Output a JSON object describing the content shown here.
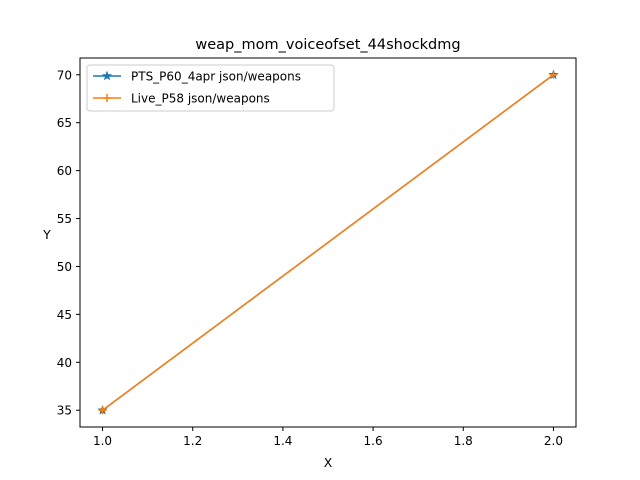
{
  "chart_data": {
    "type": "line",
    "title": "weap_mom_voiceofset_44shockdmg",
    "xlabel": "X",
    "ylabel": "Y",
    "xlim": [
      0.95,
      2.05
    ],
    "ylim": [
      33.25,
      71.75
    ],
    "xticks": [
      1.0,
      1.2,
      1.4,
      1.6,
      1.8,
      2.0
    ],
    "xtick_labels": [
      "1.0",
      "1.2",
      "1.4",
      "1.6",
      "1.8",
      "2.0"
    ],
    "yticks": [
      35,
      40,
      45,
      50,
      55,
      60,
      65,
      70
    ],
    "ytick_labels": [
      "35",
      "40",
      "45",
      "50",
      "55",
      "60",
      "65",
      "70"
    ],
    "grid": false,
    "legend_position": "top-left",
    "series": [
      {
        "name": "PTS_P60_4apr json/weapons",
        "x": [
          1,
          2
        ],
        "y": [
          35,
          70
        ],
        "color": "#1f77b4",
        "marker": "star"
      },
      {
        "name": "Live_P58 json/weapons",
        "x": [
          1,
          2
        ],
        "y": [
          35,
          70
        ],
        "color": "#ff7f0e",
        "marker": "plus"
      }
    ]
  }
}
